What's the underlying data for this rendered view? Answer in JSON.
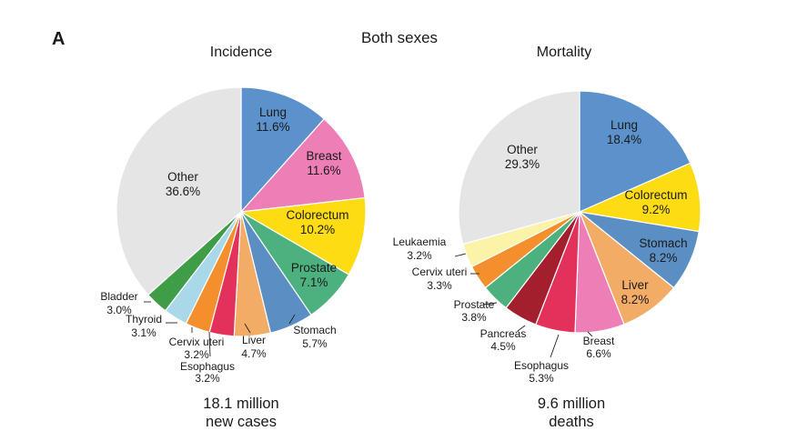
{
  "panel_label": "A",
  "header": "Both sexes",
  "chart_data": [
    {
      "type": "pie",
      "title": "Incidence",
      "subtitle": [
        "18.1 million",
        "new cases"
      ],
      "slices": [
        {
          "label": "Lung",
          "value": 11.6,
          "display": "11.6%",
          "color": "#5b92cc"
        },
        {
          "label": "Breast",
          "value": 11.6,
          "display": "11.6%",
          "color": "#ee7fb6"
        },
        {
          "label": "Colorectum",
          "value": 10.2,
          "display": "10.2%",
          "color": "#fddc14"
        },
        {
          "label": "Prostate",
          "value": 7.1,
          "display": "7.1%",
          "color": "#4db17f"
        },
        {
          "label": "Stomach",
          "value": 5.7,
          "display": "5.7%",
          "color": "#5b8fc4"
        },
        {
          "label": "Liver",
          "value": 4.7,
          "display": "4.7%",
          "color": "#f3ac66"
        },
        {
          "label": "Esophagus",
          "value": 3.2,
          "display": "3.2%",
          "color": "#e2315b"
        },
        {
          "label": "Cervix uteri",
          "value": 3.2,
          "display": "3.2%",
          "color": "#f38f2c"
        },
        {
          "label": "Thyroid",
          "value": 3.1,
          "display": "3.1%",
          "color": "#a9d9e8"
        },
        {
          "label": "Bladder",
          "value": 3.0,
          "display": "3.0%",
          "color": "#3f9c47"
        },
        {
          "label": "Other",
          "value": 36.6,
          "display": "36.6%",
          "color": "#e5e5e5"
        }
      ]
    },
    {
      "type": "pie",
      "title": "Mortality",
      "subtitle": [
        "9.6 million",
        "deaths"
      ],
      "slices": [
        {
          "label": "Lung",
          "value": 18.4,
          "display": "18.4%",
          "color": "#5b92cc"
        },
        {
          "label": "Colorectum",
          "value": 9.2,
          "display": "9.2%",
          "color": "#fddc14"
        },
        {
          "label": "Stomach",
          "value": 8.2,
          "display": "8.2%",
          "color": "#5b8fc4"
        },
        {
          "label": "Liver",
          "value": 8.2,
          "display": "8.2%",
          "color": "#f3ac66"
        },
        {
          "label": "Breast",
          "value": 6.6,
          "display": "6.6%",
          "color": "#ee7fb6"
        },
        {
          "label": "Esophagus",
          "value": 5.3,
          "display": "5.3%",
          "color": "#e2315b"
        },
        {
          "label": "Pancreas",
          "value": 4.5,
          "display": "4.5%",
          "color": "#a31f2e"
        },
        {
          "label": "Prostate",
          "value": 3.8,
          "display": "3.8%",
          "color": "#4db17f"
        },
        {
          "label": "Cervix uteri",
          "value": 3.3,
          "display": "3.3%",
          "color": "#f38f2c"
        },
        {
          "label": "Leukaemia",
          "value": 3.2,
          "display": "3.2%",
          "color": "#fbf3a8"
        },
        {
          "label": "Other",
          "value": 29.3,
          "display": "29.3%",
          "color": "#e5e5e5"
        }
      ]
    }
  ]
}
